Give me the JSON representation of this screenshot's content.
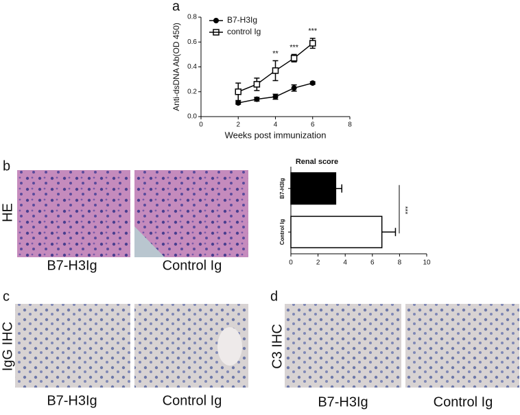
{
  "panels": {
    "a": "a",
    "b": "b",
    "c": "c",
    "d": "d"
  },
  "row_labels": {
    "he": "HE",
    "igg": "IgG IHC",
    "c3": "C3 IHC"
  },
  "captions": {
    "b_left": "B7-H3Ig",
    "b_right": "Control Ig",
    "c_left": "B7-H3Ig",
    "c_right": "Control Ig",
    "d_left": "B7-H3Ig",
    "d_right": "Control Ig"
  },
  "chart_data": [
    {
      "type": "line",
      "xlabel": "Weeks post immunization",
      "ylabel": "Anti-dsDNA Ab(OD 450)",
      "x": [
        2,
        3,
        4,
        5,
        6
      ],
      "series": [
        {
          "name": "B7-H3Ig",
          "color": "#000000",
          "marker": "circle",
          "values": [
            0.11,
            0.14,
            0.16,
            0.23,
            0.27
          ],
          "errors": [
            0.01,
            0.015,
            0.02,
            0.025,
            0.01
          ]
        },
        {
          "name": "control Ig",
          "color": "#000000",
          "marker": "square",
          "values": [
            0.2,
            0.26,
            0.37,
            0.47,
            0.59
          ],
          "errors": [
            0.07,
            0.05,
            0.08,
            0.03,
            0.04
          ]
        }
      ],
      "annotations": [
        {
          "x": 4,
          "text": "**"
        },
        {
          "x": 5,
          "text": "***"
        },
        {
          "x": 6,
          "text": "***"
        }
      ],
      "xlim": [
        0,
        8
      ],
      "xticks": [
        0,
        2,
        4,
        6,
        8
      ],
      "ylim": [
        0,
        0.8
      ],
      "yticks": [
        {
          "value": 0,
          "label": "0.0"
        },
        0.2,
        0.4,
        0.6,
        0.8
      ],
      "legend": "upper left"
    },
    {
      "type": "hbar",
      "title": "Renal score",
      "categories": [
        "B7-H3Ig",
        "Control Ig"
      ],
      "values": [
        3.3,
        6.7
      ],
      "errors": [
        0.45,
        1.0
      ],
      "colors": [
        "#000000",
        "#ffffff"
      ],
      "significance": "***",
      "xlim": [
        0,
        10
      ],
      "xticks": [
        0,
        2,
        4,
        6,
        8,
        10
      ]
    }
  ]
}
